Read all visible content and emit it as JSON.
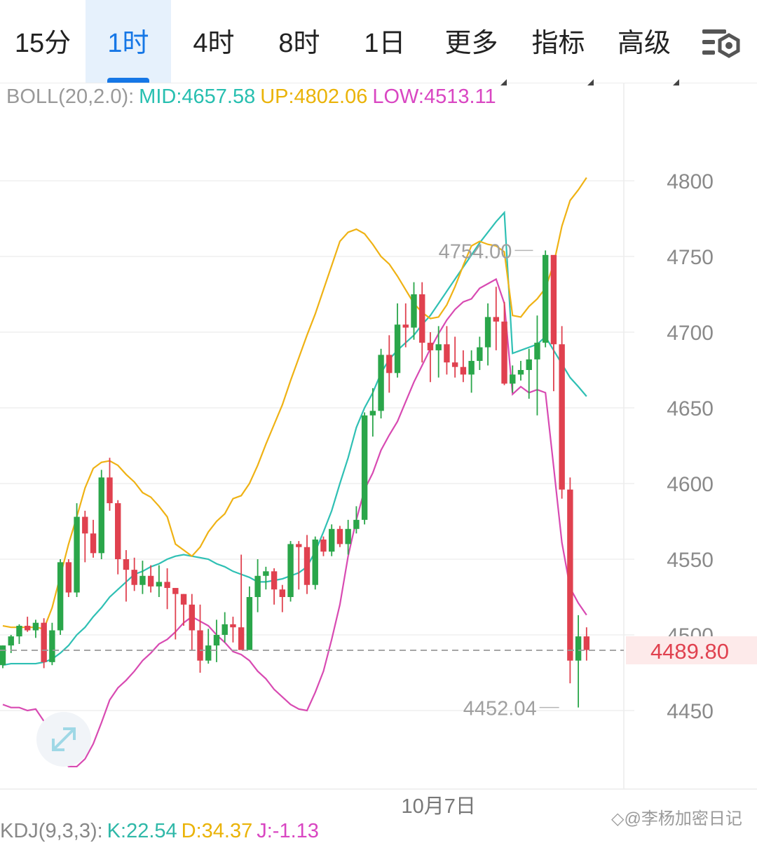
{
  "tabs": [
    {
      "label": "15分",
      "active": false,
      "dropdown": false
    },
    {
      "label": "1时",
      "active": true,
      "dropdown": false
    },
    {
      "label": "4时",
      "active": false,
      "dropdown": false
    },
    {
      "label": "8时",
      "active": false,
      "dropdown": false
    },
    {
      "label": "1日",
      "active": false,
      "dropdown": false
    },
    {
      "label": "更多",
      "active": false,
      "dropdown": true
    },
    {
      "label": "指标",
      "active": false,
      "dropdown": true
    },
    {
      "label": "高级",
      "active": false,
      "dropdown": true
    }
  ],
  "settings_icon": "chart-settings-icon",
  "legend": {
    "name": "BOLL(20,2.0):",
    "mid": "MID:4657.58",
    "up": "UP:4802.06",
    "low": "LOW:4513.11"
  },
  "kdj": {
    "name": "KDJ(9,3,3):",
    "k": "K:22.54",
    "d": "D:34.37",
    "j": "J:-1.13"
  },
  "watermark": "◇@李杨加密日记",
  "colors": {
    "up": "#2aa64a",
    "down": "#e0414f",
    "mid": "#2fc0b4",
    "upper": "#efb214",
    "lower": "#d84ab2",
    "label_mid": "#27bfb0",
    "label_up": "#eab308",
    "label_low": "#d946c2"
  },
  "chart_data": {
    "type": "candlestick",
    "y_ticks": [
      4800,
      4750,
      4700,
      4650,
      4600,
      4550,
      4500,
      4450
    ],
    "ylim": [
      4400,
      4827
    ],
    "x_label": "10月7日",
    "x_label_index": 53,
    "current_price": "4489.80",
    "max_marker": {
      "label": "4754.00",
      "index": 65,
      "value": 4754
    },
    "min_marker": {
      "label": "4452.04",
      "index": 68,
      "value": 4452
    },
    "candles": [
      [
        4480,
        4493,
        4478,
        4493
      ],
      [
        4493,
        4500,
        4488,
        4499
      ],
      [
        4499,
        4507,
        4494,
        4506
      ],
      [
        4506,
        4512,
        4502,
        4503
      ],
      [
        4503,
        4510,
        4498,
        4508
      ],
      [
        4508,
        4511,
        4478,
        4482
      ],
      [
        4482,
        4508,
        4480,
        4503
      ],
      [
        4503,
        4550,
        4500,
        4548
      ],
      [
        4548,
        4550,
        4525,
        4528
      ],
      [
        4528,
        4587,
        4525,
        4578
      ],
      [
        4578,
        4582,
        4548,
        4567
      ],
      [
        4567,
        4576,
        4551,
        4554
      ],
      [
        4554,
        4609,
        4550,
        4604
      ],
      [
        4604,
        4617,
        4582,
        4587
      ],
      [
        4587,
        4589,
        4540,
        4550
      ],
      [
        4550,
        4556,
        4522,
        4543
      ],
      [
        4543,
        4551,
        4529,
        4533
      ],
      [
        4533,
        4549,
        4527,
        4539
      ],
      [
        4539,
        4546,
        4528,
        4532
      ],
      [
        4532,
        4546,
        4525,
        4535
      ],
      [
        4535,
        4544,
        4517,
        4531
      ],
      [
        4531,
        4531,
        4497,
        4527
      ],
      [
        4527,
        4527,
        4506,
        4520
      ],
      [
        4520,
        4527,
        4490,
        4503
      ],
      [
        4503,
        4520,
        4475,
        4483
      ],
      [
        4483,
        4504,
        4481,
        4493
      ],
      [
        4493,
        4510,
        4482,
        4500
      ],
      [
        4500,
        4515,
        4495,
        4507
      ],
      [
        4507,
        4512,
        4495,
        4505
      ],
      [
        4505,
        4553,
        4493,
        4490
      ],
      [
        4490,
        4532,
        4493,
        4525
      ],
      [
        4525,
        4550,
        4515,
        4539
      ],
      [
        4539,
        4545,
        4530,
        4542
      ],
      [
        4542,
        4544,
        4520,
        4530
      ],
      [
        4530,
        4533,
        4515,
        4525
      ],
      [
        4525,
        4562,
        4522,
        4560
      ],
      [
        4560,
        4562,
        4530,
        4558
      ],
      [
        4558,
        4566,
        4527,
        4533
      ],
      [
        4533,
        4565,
        4530,
        4563
      ],
      [
        4563,
        4565,
        4552,
        4555
      ],
      [
        4555,
        4573,
        4552,
        4570
      ],
      [
        4570,
        4572,
        4558,
        4560
      ],
      [
        4560,
        4576,
        4553,
        4570
      ],
      [
        4570,
        4585,
        4567,
        4576
      ],
      [
        4576,
        4647,
        4573,
        4645
      ],
      [
        4645,
        4663,
        4631,
        4648
      ],
      [
        4648,
        4689,
        4643,
        4685
      ],
      [
        4685,
        4698,
        4660,
        4673
      ],
      [
        4673,
        4719,
        4670,
        4705
      ],
      [
        4705,
        4719,
        4690,
        4703
      ],
      [
        4703,
        4733,
        4695,
        4725
      ],
      [
        4725,
        4733,
        4680,
        4693
      ],
      [
        4693,
        4700,
        4667,
        4688
      ],
      [
        4688,
        4704,
        4670,
        4692
      ],
      [
        4692,
        4704,
        4672,
        4680
      ],
      [
        4680,
        4697,
        4670,
        4677
      ],
      [
        4677,
        4688,
        4667,
        4672
      ],
      [
        4672,
        4688,
        4660,
        4681
      ],
      [
        4681,
        4697,
        4675,
        4690
      ],
      [
        4690,
        4719,
        4678,
        4710
      ],
      [
        4710,
        4730,
        4688,
        4707
      ],
      [
        4707,
        4720,
        4665,
        4666
      ],
      [
        4666,
        4678,
        4660,
        4672
      ],
      [
        4672,
        4681,
        4668,
        4675
      ],
      [
        4675,
        4689,
        4656,
        4682
      ],
      [
        4682,
        4711,
        4645,
        4693
      ],
      [
        4693,
        4754,
        4690,
        4751
      ],
      [
        4751,
        4750,
        4661,
        4692
      ],
      [
        4692,
        4704,
        4590,
        4596
      ],
      [
        4596,
        4604,
        4468,
        4483
      ],
      [
        4483,
        4513,
        4452,
        4499
      ],
      [
        4499,
        4505,
        4483,
        4490
      ]
    ],
    "series": [
      {
        "name": "MID:4657.58",
        "values": [
          4480,
          4481,
          4481,
          4481,
          4481,
          4482,
          4484,
          4488,
          4493,
          4500,
          4505,
          4512,
          4518,
          4525,
          4530,
          4535,
          4540,
          4542,
          4545,
          4547,
          4550,
          4552,
          4553,
          4552,
          4551,
          4550,
          4547,
          4545,
          4542,
          4540,
          4538,
          4535,
          4535,
          4536,
          4537,
          4539,
          4541,
          4545,
          4555,
          4568,
          4582,
          4600,
          4617,
          4637,
          4650,
          4660,
          4673,
          4682,
          4688,
          4693,
          4698,
          4705,
          4711,
          4719,
          4727,
          4735,
          4743,
          4751,
          4759,
          4766,
          4773,
          4779,
          4686,
          4688,
          4690,
          4692,
          4697,
          4688,
          4679,
          4670,
          4664,
          4657.58
        ]
      },
      {
        "name": "UP:4802.06",
        "values": [
          4506,
          4505,
          4505,
          4505,
          4505,
          4504,
          4518,
          4539,
          4560,
          4578,
          4597,
          4610,
          4614,
          4615,
          4612,
          4606,
          4601,
          4594,
          4591,
          4585,
          4578,
          4560,
          4556,
          4552,
          4558,
          4568,
          4575,
          4580,
          4590,
          4592,
          4600,
          4612,
          4626,
          4639,
          4652,
          4668,
          4683,
          4698,
          4712,
          4728,
          4744,
          4760,
          4766,
          4768,
          4765,
          4758,
          4750,
          4745,
          4737,
          4728,
          4719,
          4713,
          4709,
          4710,
          4718,
          4730,
          4744,
          4757,
          4760,
          4758,
          4757,
          4753,
          4711,
          4710,
          4717,
          4722,
          4729,
          4745,
          4770,
          4787,
          4794,
          4802.06
        ]
      },
      {
        "name": "LOW:4513.11",
        "values": [
          4454,
          4452,
          4452,
          4450,
          4451,
          4443,
          4432,
          4420,
          4413,
          4413,
          4418,
          4428,
          4442,
          4457,
          4465,
          4470,
          4476,
          4483,
          4488,
          4494,
          4497,
          4502,
          4508,
          4512,
          4509,
          4506,
          4500,
          4495,
          4489,
          4487,
          4483,
          4476,
          4471,
          4464,
          4459,
          4454,
          4451,
          4450,
          4462,
          4476,
          4497,
          4520,
          4552,
          4576,
          4596,
          4607,
          4622,
          4632,
          4641,
          4654,
          4667,
          4678,
          4689,
          4699,
          4708,
          4715,
          4720,
          4722,
          4729,
          4732,
          4735,
          4719,
          4659,
          4664,
          4660,
          4662,
          4660,
          4611,
          4561,
          4531,
          4521,
          4513.11
        ]
      }
    ]
  }
}
